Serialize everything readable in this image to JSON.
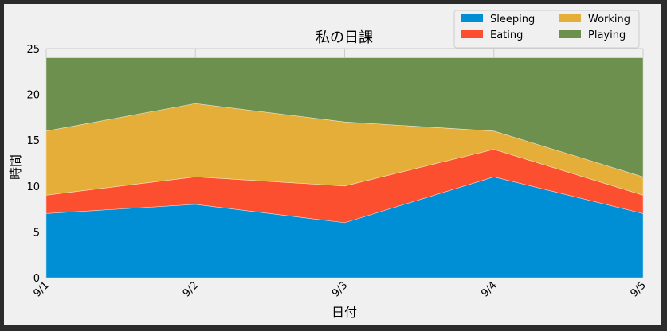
{
  "chart_data": {
    "type": "area",
    "stacked": true,
    "title": "私の日課",
    "xlabel": "日付",
    "ylabel": "時間",
    "categories": [
      "9/1",
      "9/2",
      "9/3",
      "9/4",
      "9/5"
    ],
    "ylim": [
      0,
      25
    ],
    "yticks": [
      "0",
      "5",
      "10",
      "15",
      "20",
      "25"
    ],
    "grid": true,
    "legend_position": "top-right",
    "series": [
      {
        "name": "Sleeping",
        "values": [
          7,
          8,
          6,
          11,
          7
        ],
        "color": "#008fd5"
      },
      {
        "name": "Eating",
        "values": [
          2,
          3,
          4,
          3,
          2
        ],
        "color": "#fc4f30"
      },
      {
        "name": "Working",
        "values": [
          7,
          8,
          7,
          2,
          2
        ],
        "color": "#e5ae38"
      },
      {
        "name": "Playing",
        "values": [
          8,
          5,
          7,
          8,
          13
        ],
        "color": "#6d904f"
      }
    ]
  },
  "style": {
    "background": "#f0f0f0",
    "grid_color": "#cbcbcb",
    "frame_color": "#2b2b2b"
  }
}
